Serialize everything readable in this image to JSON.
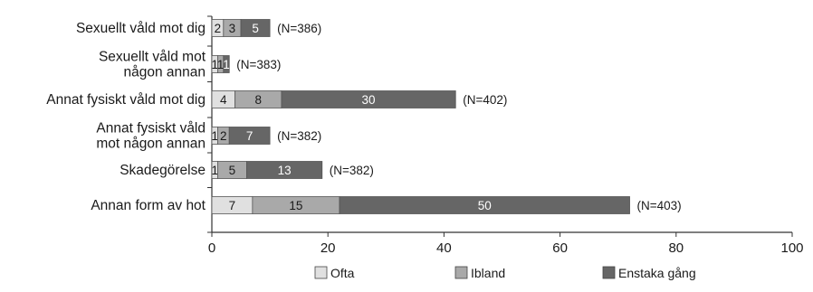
{
  "chart_data": {
    "type": "bar",
    "orientation": "horizontal",
    "stacked": true,
    "title": "",
    "xlabel": "",
    "ylabel": "",
    "xlim": [
      0,
      100
    ],
    "xticks": [
      0,
      20,
      40,
      60,
      80,
      100
    ],
    "grid": false,
    "legend_position": "bottom",
    "categories": [
      "Sexuellt våld mot dig",
      "Sexuellt våld mot någon annan",
      "Annat fysiskt våld mot dig",
      "Annat fysiskt våld mot någon annan",
      "Skadegörelse",
      "Annan form av hot"
    ],
    "category_lines": [
      [
        "Sexuellt våld mot dig"
      ],
      [
        "Sexuellt våld mot",
        "någon annan"
      ],
      [
        "Annat fysiskt våld mot dig"
      ],
      [
        "Annat fysiskt våld",
        "mot någon annan"
      ],
      [
        "Skadegörelse"
      ],
      [
        "Annan form av hot"
      ]
    ],
    "series": [
      {
        "name": "Ofta",
        "color": "#e0e0e0",
        "label_color": "#1a1a1a",
        "values": [
          2,
          1,
          4,
          1,
          1,
          7
        ],
        "labels": [
          "2",
          "1",
          "4",
          "1",
          "1",
          "7"
        ]
      },
      {
        "name": "Ibland",
        "color": "#a9a9a9",
        "label_color": "#1a1a1a",
        "values": [
          3,
          1,
          8,
          2,
          5,
          15
        ],
        "labels": [
          "3",
          "1",
          "8",
          "2",
          "5",
          "15"
        ]
      },
      {
        "name": "Enstaka gång",
        "color": "#666666",
        "label_color": "#ffffff",
        "values": [
          5,
          1,
          30,
          7,
          13,
          50
        ],
        "labels": [
          "5",
          "1",
          "30",
          "7",
          "13",
          "50"
        ]
      }
    ],
    "n_labels": [
      "(N=386)",
      "(N=383)",
      "(N=402)",
      "(N=382)",
      "(N=382)",
      "(N=403)"
    ]
  }
}
